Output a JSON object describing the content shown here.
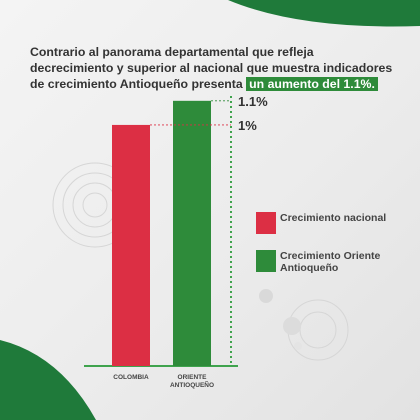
{
  "headline": {
    "text": "Contrario al panorama departamental que refleja decrecimiento y superior al nacional que muestra indicadores de crecimiento Antioqueño presenta",
    "highlight": "un aumento del 1.1%."
  },
  "colors": {
    "colombia": "#dc2f44",
    "oriente": "#2e8b3a",
    "axis": "#3fa34d",
    "text": "#333333"
  },
  "chart_data": {
    "type": "bar",
    "categories": [
      "COLOMBIA",
      "ORIENTE ANTIOQUEÑO"
    ],
    "values": [
      1.0,
      1.1
    ],
    "value_labels": [
      "1%",
      "1.1%"
    ],
    "ylim": [
      0,
      1.12
    ],
    "grid": false,
    "legend_position": "right",
    "series": [
      {
        "name": "Crecimiento nacional"
      },
      {
        "name": "Crecimiento Oriente Antioqueño"
      }
    ]
  }
}
